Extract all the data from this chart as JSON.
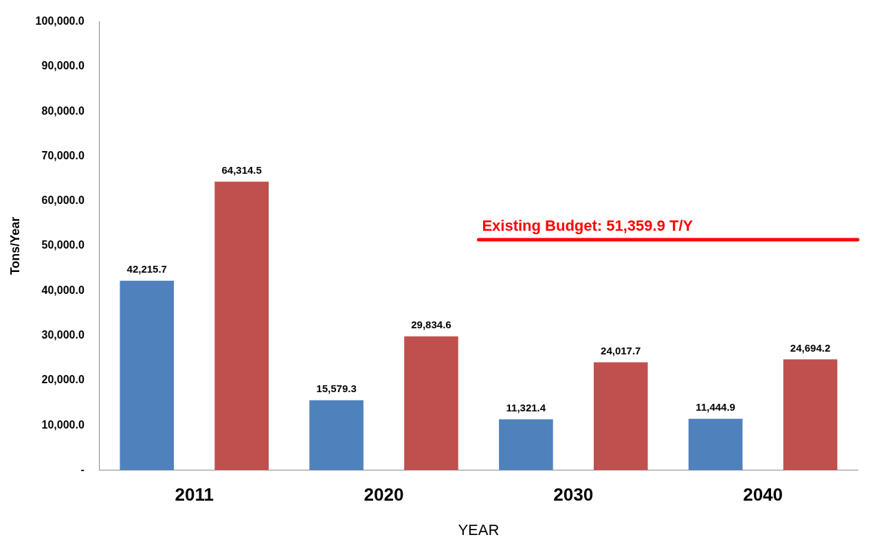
{
  "chart_data": {
    "type": "bar",
    "xlabel": "YEAR",
    "ylabel": "Tons/Year",
    "categories": [
      "2011",
      "2020",
      "2030",
      "2040"
    ],
    "series": [
      {
        "color": "#4f81bd",
        "values": [
          42215.7,
          15579.3,
          11321.4,
          11444.9
        ],
        "value_labels": [
          "42,215.7",
          "15,579.3",
          "11,321.4",
          "11,444.9"
        ]
      },
      {
        "color": "#c0504d",
        "values": [
          64314.5,
          29834.6,
          24017.7,
          24694.2
        ],
        "value_labels": [
          "64,314.5",
          "29,834.6",
          "24,017.7",
          "24,694.2"
        ]
      }
    ],
    "ylim": [
      0,
      100000
    ],
    "yticks": [
      {
        "value": 0,
        "label": "-"
      },
      {
        "value": 10000,
        "label": "10,000.0"
      },
      {
        "value": 20000,
        "label": "20,000.0"
      },
      {
        "value": 30000,
        "label": "30,000.0"
      },
      {
        "value": 40000,
        "label": "40,000.0"
      },
      {
        "value": 50000,
        "label": "50,000.0"
      },
      {
        "value": 60000,
        "label": "60,000.0"
      },
      {
        "value": 70000,
        "label": "70,000.0"
      },
      {
        "value": 80000,
        "label": "80,000.0"
      },
      {
        "value": 90000,
        "label": "90,000.0"
      },
      {
        "value": 100000,
        "label": "100,000.0"
      }
    ],
    "ref_lines": [
      {
        "axis": "y",
        "value": 51359.9,
        "label": "Existing Budget: 51,359.9 T/Y",
        "color": "#ff0000"
      }
    ],
    "grid": false,
    "legend": false
  }
}
